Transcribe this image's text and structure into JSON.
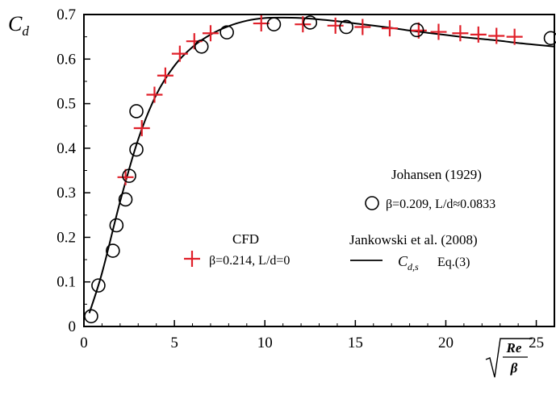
{
  "chart_data": {
    "type": "scatter",
    "xlim": [
      0,
      26
    ],
    "ylim": [
      0,
      0.7
    ],
    "x_ticks": [
      "0",
      "5",
      "10",
      "15",
      "20",
      "25"
    ],
    "y_ticks": [
      "0",
      "0.1",
      "0.2",
      "0.3",
      "0.4",
      "0.5",
      "0.6",
      "0.7"
    ],
    "ylabel": {
      "base": "C",
      "sub": "d"
    },
    "xlabel": {
      "re": "Re",
      "beta": "β"
    },
    "grid": false,
    "series": [
      {
        "name": "CFD",
        "legend_detail": "β=0.214, L/d=0",
        "marker": "plus",
        "color": "#e0202a",
        "x": [
          2.3,
          3.2,
          3.9,
          4.5,
          5.3,
          6.1,
          7.0,
          9.8,
          12.1,
          13.9,
          15.4,
          16.9,
          18.5,
          19.6,
          20.8,
          21.8,
          22.8,
          23.8
        ],
        "y": [
          0.335,
          0.445,
          0.52,
          0.563,
          0.612,
          0.64,
          0.658,
          0.68,
          0.678,
          0.675,
          0.672,
          0.669,
          0.664,
          0.661,
          0.658,
          0.655,
          0.652,
          0.65
        ]
      },
      {
        "name": "Johansen (1929)",
        "legend_detail": "β=0.209, L/d≈0.0833",
        "marker": "circle",
        "color": "#000000",
        "x": [
          0.4,
          0.8,
          1.6,
          1.8,
          2.3,
          2.5,
          2.9,
          2.9,
          6.5,
          7.9,
          10.5,
          12.5,
          14.5,
          18.4,
          25.8
        ],
        "y": [
          0.023,
          0.092,
          0.17,
          0.227,
          0.285,
          0.338,
          0.397,
          0.483,
          0.628,
          0.66,
          0.678,
          0.682,
          0.672,
          0.665,
          0.647
        ]
      },
      {
        "name": "Jankowski et al. (2008)",
        "legend_detail": "Eq.(3)",
        "legend_symbol": {
          "base": "C",
          "sub": "d,s"
        },
        "type": "line",
        "color": "#000000",
        "x": [
          0.3,
          1.0,
          2.0,
          3.0,
          4.0,
          5.0,
          6.0,
          7.0,
          8.0,
          9.0,
          10.0,
          11.0,
          12.0,
          13.0,
          14.0,
          15.0,
          16.0,
          17.0,
          18.0,
          19.0,
          20.0,
          21.0,
          22.0,
          23.0,
          24.0,
          25.0,
          26.0
        ],
        "y": [
          0.03,
          0.12,
          0.28,
          0.42,
          0.52,
          0.585,
          0.627,
          0.655,
          0.674,
          0.686,
          0.692,
          0.693,
          0.692,
          0.689,
          0.685,
          0.68,
          0.675,
          0.67,
          0.664,
          0.659,
          0.654,
          0.649,
          0.645,
          0.641,
          0.636,
          0.632,
          0.628
        ]
      }
    ]
  }
}
